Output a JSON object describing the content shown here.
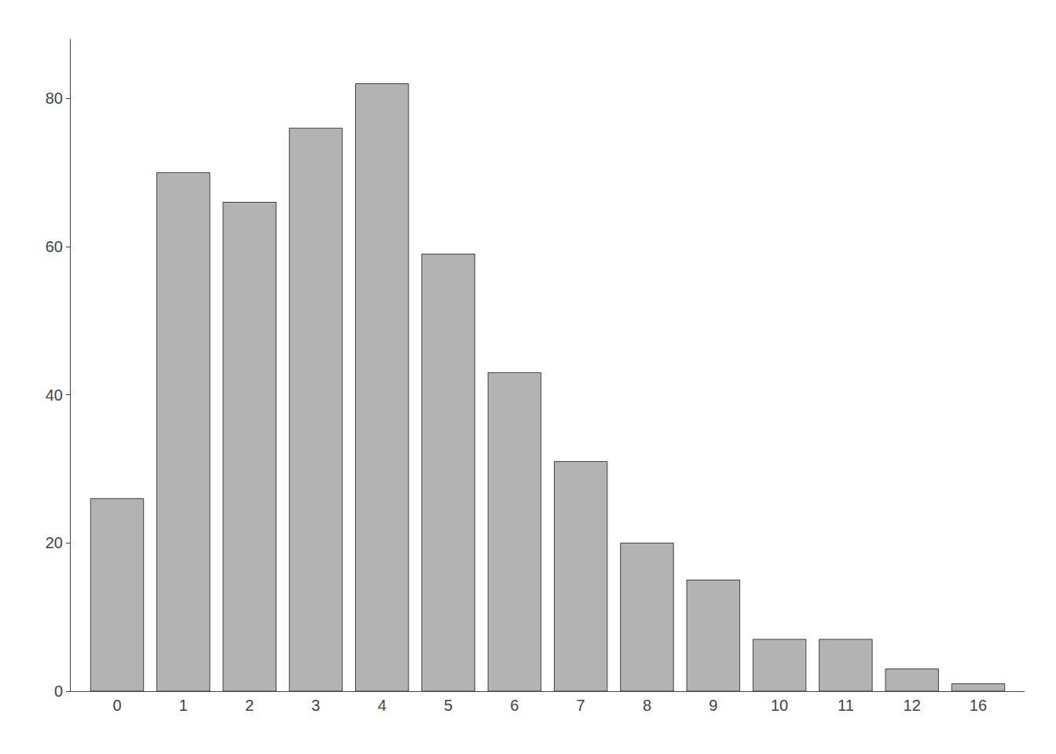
{
  "chart_data": {
    "type": "bar",
    "categories": [
      "0",
      "1",
      "2",
      "3",
      "4",
      "5",
      "6",
      "7",
      "8",
      "9",
      "10",
      "11",
      "12",
      "16"
    ],
    "values": [
      26,
      70,
      66,
      76,
      82,
      59,
      43,
      31,
      20,
      15,
      7,
      7,
      3,
      1
    ],
    "color": "#b3b3b3",
    "ylim": [
      0,
      88
    ],
    "yticks": [
      0,
      20,
      40,
      60,
      80
    ],
    "grid": false
  }
}
